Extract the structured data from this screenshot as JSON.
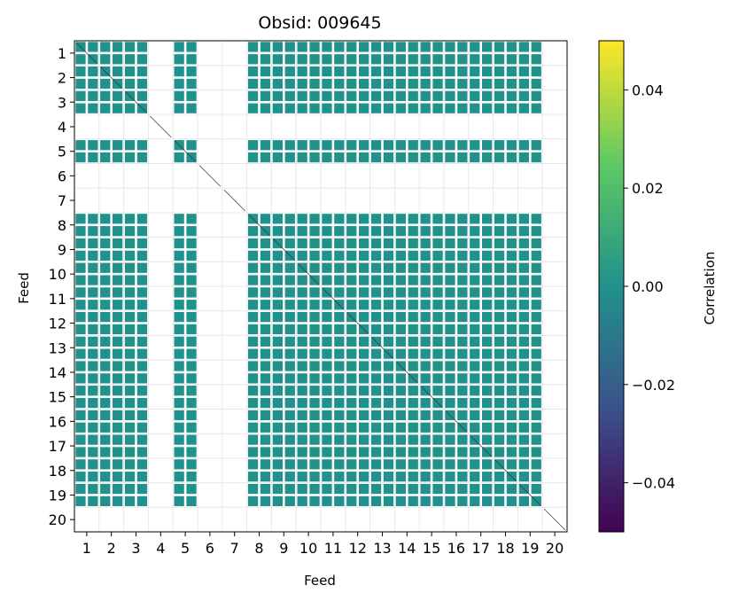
{
  "chart_data": {
    "type": "heatmap",
    "title": "Obsid: 009645",
    "xlabel": "Feed",
    "ylabel": "Feed",
    "x_ticks": [
      "1",
      "2",
      "3",
      "4",
      "5",
      "6",
      "7",
      "8",
      "9",
      "10",
      "11",
      "12",
      "13",
      "14",
      "15",
      "16",
      "17",
      "18",
      "19",
      "20"
    ],
    "y_ticks": [
      "1",
      "2",
      "3",
      "4",
      "5",
      "6",
      "7",
      "8",
      "9",
      "10",
      "11",
      "12",
      "13",
      "14",
      "15",
      "16",
      "17",
      "18",
      "19",
      "20"
    ],
    "feeds": [
      1,
      2,
      3,
      4,
      5,
      6,
      7,
      8,
      9,
      10,
      11,
      12,
      13,
      14,
      15,
      16,
      17,
      18,
      19,
      20
    ],
    "active_feeds": [
      1,
      2,
      3,
      5,
      8,
      9,
      10,
      11,
      12,
      13,
      14,
      15,
      16,
      17,
      18,
      19
    ],
    "inactive_feeds": [
      4,
      6,
      7,
      20
    ],
    "cell_value": 0.0,
    "cell_color": "#21918c",
    "colorbar": {
      "label": "Correlation",
      "vmin": -0.05,
      "vmax": 0.05,
      "ticks": [
        0.04,
        0.02,
        0.0,
        -0.02,
        -0.04
      ],
      "tick_labels": [
        "0.04",
        "0.02",
        "0.00",
        "−0.02",
        "−0.04"
      ],
      "colormap": "viridis",
      "stops": [
        "#440154",
        "#3b528b",
        "#21918c",
        "#5ec962",
        "#fde725"
      ]
    }
  }
}
